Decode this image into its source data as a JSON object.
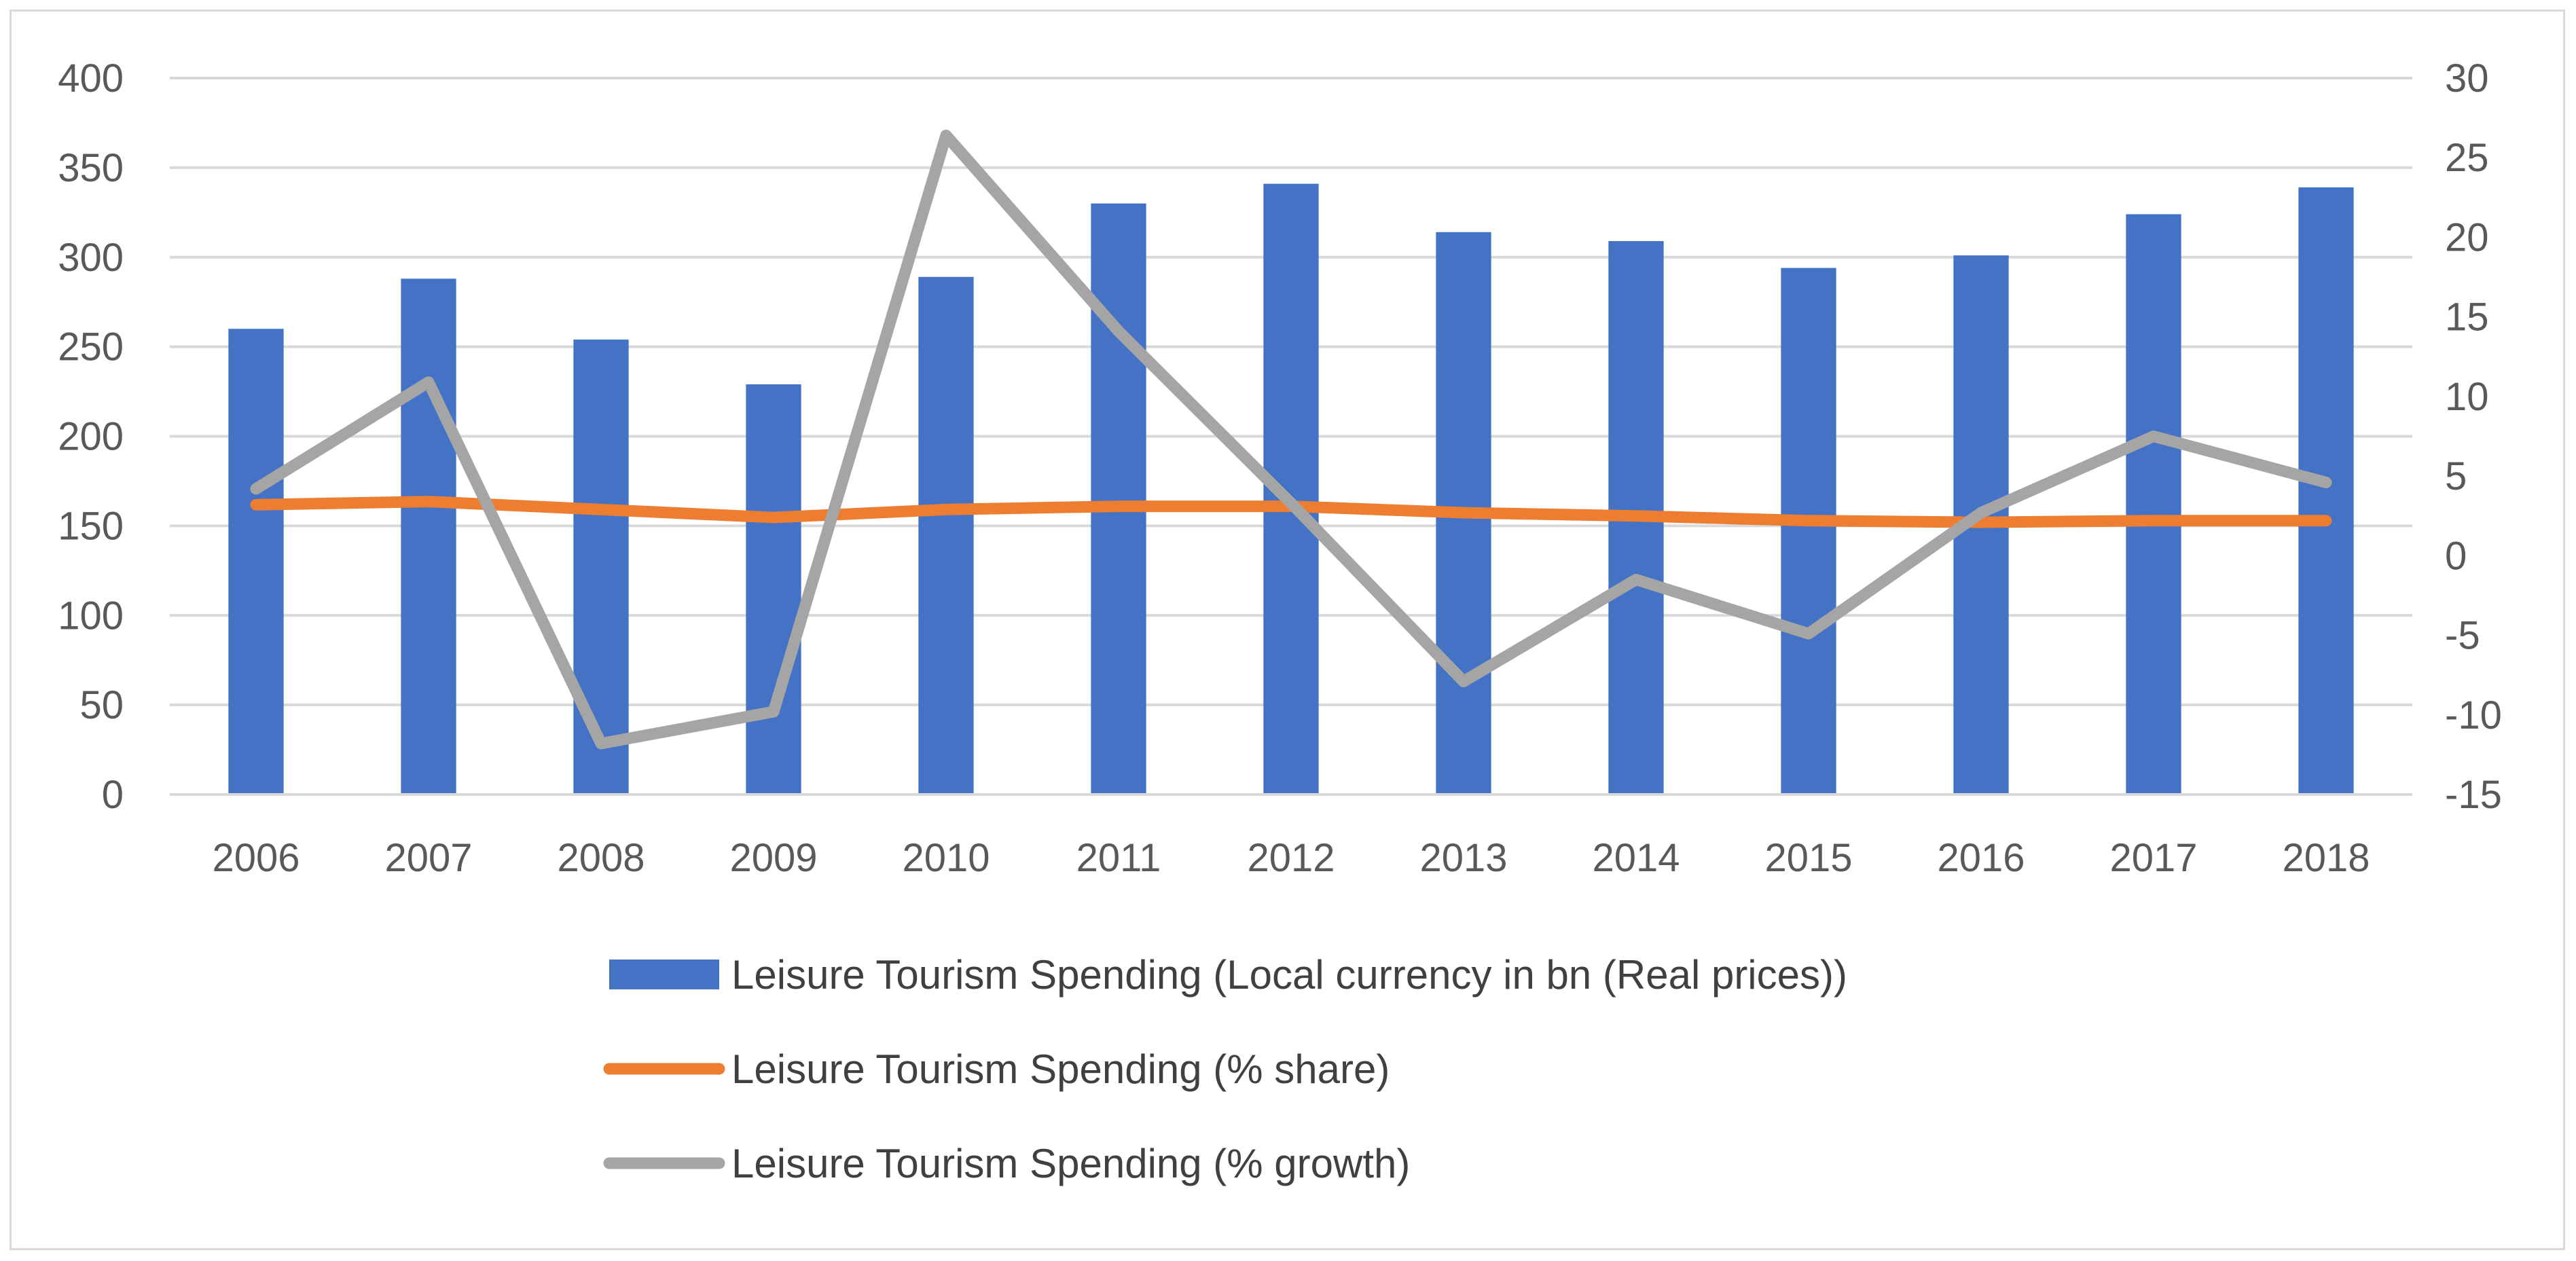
{
  "chart_data": {
    "type": "bar",
    "title": "",
    "categories": [
      "2006",
      "2007",
      "2008",
      "2009",
      "2010",
      "2011",
      "2012",
      "2013",
      "2014",
      "2015",
      "2016",
      "2017",
      "2018"
    ],
    "series": [
      {
        "name": "Leisure Tourism Spending (Local currency in bn (Real prices))",
        "type": "bar",
        "axis": "left",
        "color": "#4472c4",
        "values": [
          260,
          288,
          254,
          229,
          289,
          330,
          341,
          314,
          309,
          294,
          301,
          324,
          339
        ]
      },
      {
        "name": "Leisure Tourism Spending (% share)",
        "type": "line",
        "axis": "right",
        "color": "#ed7d31",
        "values": [
          3.2,
          3.4,
          2.9,
          2.4,
          2.9,
          3.1,
          3.1,
          2.7,
          2.5,
          2.2,
          2.1,
          2.2,
          2.2
        ]
      },
      {
        "name": "Leisure Tourism Spending (% growth)",
        "type": "line",
        "axis": "right",
        "color": "#a5a5a5",
        "values": [
          4.2,
          10.9,
          -11.8,
          -9.8,
          26.4,
          14.1,
          3.3,
          -7.9,
          -1.5,
          -4.9,
          2.7,
          7.5,
          4.6
        ]
      }
    ],
    "y_left": {
      "min": 0,
      "max": 400,
      "step": 50,
      "ticks": [
        "0",
        "50",
        "100",
        "150",
        "200",
        "250",
        "300",
        "350",
        "400"
      ]
    },
    "y_right": {
      "min": -15,
      "max": 30,
      "step": 5,
      "ticks": [
        "-15",
        "-10",
        "-5",
        "0",
        "5",
        "10",
        "15",
        "20",
        "25",
        "30"
      ]
    },
    "xlabel": "",
    "ylabel": "",
    "gridlines": true,
    "legend_position": "bottom"
  }
}
